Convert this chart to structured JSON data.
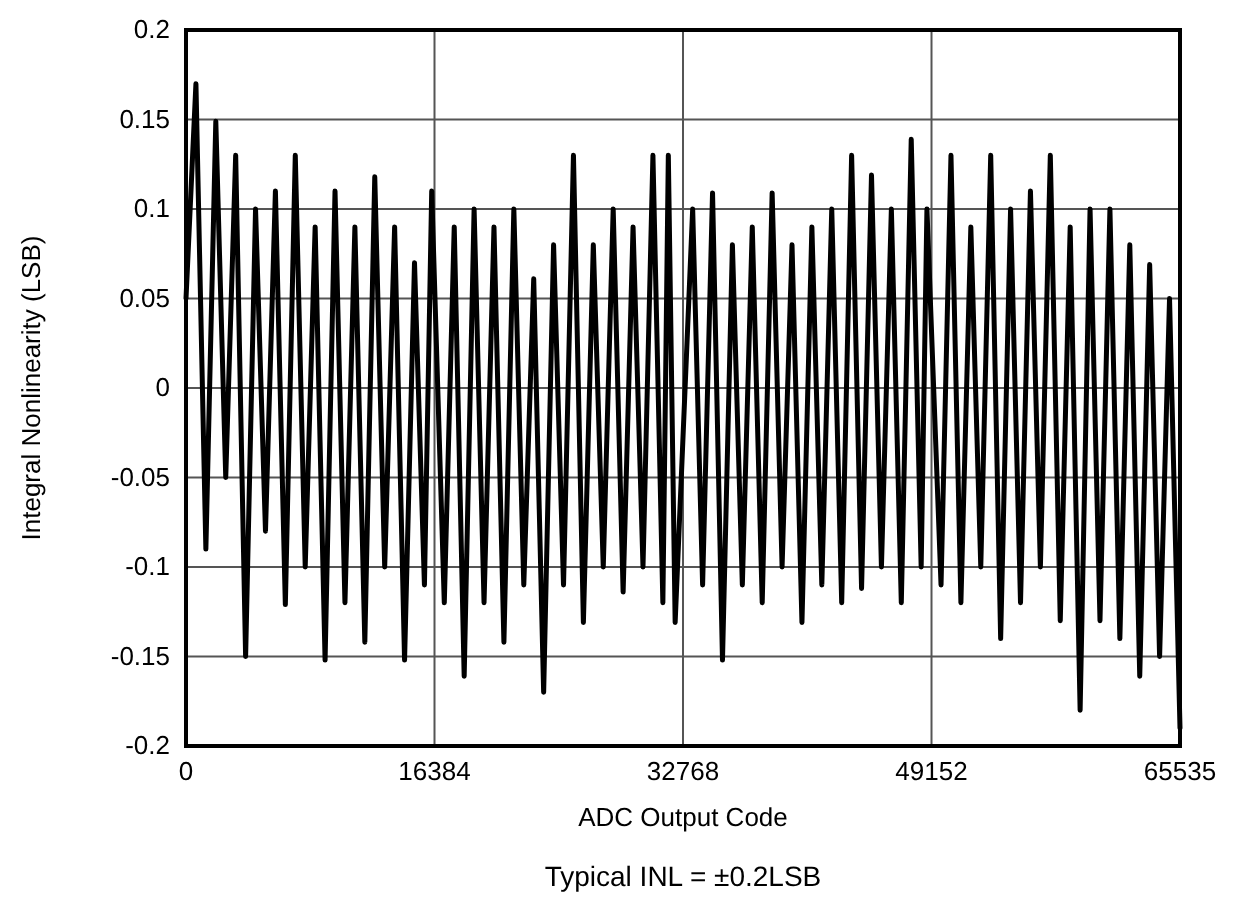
{
  "chart_data": {
    "type": "line",
    "xlabel": "ADC Output Code",
    "ylabel": "Integral Nonlinearity (LSB)",
    "annotations": [
      "Typical INL = ±0.2LSB"
    ],
    "xlim": [
      0,
      65535
    ],
    "xticks": [
      0,
      16384,
      32768,
      49152,
      65535
    ],
    "ylim": [
      -0.2,
      0.2
    ],
    "yticks": [
      -0.2,
      -0.15,
      -0.1,
      -0.05,
      0,
      0.05,
      0.1,
      0.15,
      0.2
    ],
    "grid": true,
    "marker": "none",
    "line_style": "solid",
    "x": [
      0,
      655,
      1310,
      1965,
      2620,
      3275,
      3930,
      4585,
      5240,
      5895,
      6550,
      7205,
      7860,
      8515,
      9170,
      9825,
      10480,
      11135,
      11790,
      12445,
      13100,
      13755,
      14410,
      15065,
      15720,
      16200,
      17030,
      17685,
      18340,
      18995,
      19650,
      20305,
      20960,
      21615,
      22270,
      22925,
      23580,
      24235,
      24890,
      25545,
      26200,
      26855,
      27510,
      28165,
      28820,
      29475,
      30130,
      30785,
      31440,
      31800,
      32250,
      33405,
      34060,
      34715,
      35370,
      36025,
      36680,
      37335,
      37990,
      38645,
      39300,
      39955,
      40610,
      41265,
      41920,
      42575,
      43230,
      43885,
      44540,
      45195,
      45850,
      46505,
      47160,
      47815,
      48470,
      48850,
      49780,
      50435,
      51090,
      51745,
      52400,
      53055,
      53710,
      54365,
      55020,
      55675,
      56330,
      56985,
      57640,
      58295,
      58950,
      59605,
      60260,
      60915,
      61570,
      62225,
      62880,
      63535,
      64190,
      64845,
      65535
    ],
    "series": [
      {
        "color": "#000000",
        "values": [
          0.05,
          0.17,
          -0.09,
          0.149,
          -0.05,
          0.13,
          -0.15,
          0.1,
          -0.08,
          0.11,
          -0.121,
          0.13,
          -0.1,
          0.09,
          -0.152,
          0.11,
          -0.12,
          0.09,
          -0.142,
          0.118,
          -0.1,
          0.09,
          -0.152,
          0.07,
          -0.11,
          0.11,
          -0.12,
          0.09,
          -0.161,
          0.1,
          -0.12,
          0.09,
          -0.142,
          0.1,
          -0.11,
          0.061,
          -0.17,
          0.08,
          -0.11,
          0.13,
          -0.131,
          0.08,
          -0.1,
          0.1,
          -0.114,
          0.09,
          -0.1,
          0.13,
          -0.12,
          0.13,
          -0.131,
          0.1,
          -0.11,
          0.109,
          -0.152,
          0.08,
          -0.11,
          0.09,
          -0.12,
          0.109,
          -0.1,
          0.08,
          -0.131,
          0.09,
          -0.11,
          0.1,
          -0.12,
          0.13,
          -0.112,
          0.119,
          -0.1,
          0.1,
          -0.12,
          0.139,
          -0.1,
          0.1,
          -0.11,
          0.13,
          -0.12,
          0.09,
          -0.1,
          0.13,
          -0.14,
          0.1,
          -0.12,
          0.11,
          -0.1,
          0.13,
          -0.13,
          0.09,
          -0.18,
          0.1,
          -0.13,
          0.1,
          -0.14,
          0.08,
          -0.161,
          0.069,
          -0.15,
          0.05,
          -0.19
        ]
      }
    ]
  }
}
